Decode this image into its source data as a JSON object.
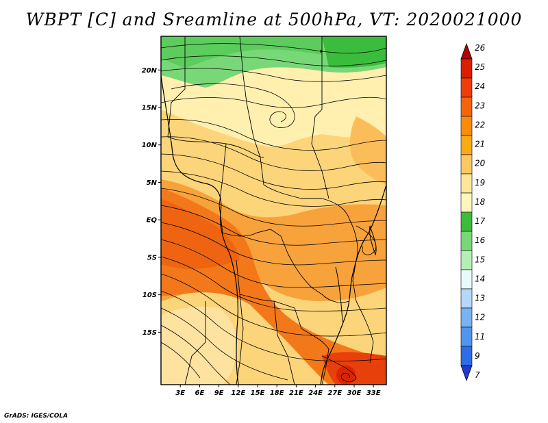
{
  "title": "WBPT [C] and Sreamline at 500hPa, VT: 2020021000",
  "credit": "GrADS: IGES/COLA",
  "map": {
    "lat_range": [
      -22,
      24.5
    ],
    "lon_range": [
      0,
      35
    ],
    "lat_ticks": [
      {
        "value": 20,
        "label": "20N"
      },
      {
        "value": 15,
        "label": "15N"
      },
      {
        "value": 10,
        "label": "10N"
      },
      {
        "value": 5,
        "label": "5N"
      },
      {
        "value": 0,
        "label": "EQ"
      },
      {
        "value": -5,
        "label": "5S"
      },
      {
        "value": -10,
        "label": "10S"
      },
      {
        "value": -15,
        "label": "15S"
      }
    ],
    "lon_ticks": [
      {
        "value": 3,
        "label": "3E"
      },
      {
        "value": 6,
        "label": "6E"
      },
      {
        "value": 9,
        "label": "9E"
      },
      {
        "value": 12,
        "label": "12E"
      },
      {
        "value": 15,
        "label": "15E"
      },
      {
        "value": 18,
        "label": "18E"
      },
      {
        "value": 21,
        "label": "21E"
      },
      {
        "value": 24,
        "label": "24E"
      },
      {
        "value": 27,
        "label": "27E"
      },
      {
        "value": 30,
        "label": "30E"
      },
      {
        "value": 33,
        "label": "33E"
      }
    ]
  },
  "colorbar": {
    "labels": [
      "26",
      "25",
      "24",
      "23",
      "22",
      "21",
      "20",
      "19",
      "18",
      "17",
      "16",
      "15",
      "14",
      "13",
      "12",
      "11",
      "9",
      "7"
    ],
    "colors": [
      "#b40000",
      "#dc1e00",
      "#f03c0a",
      "#f5640a",
      "#fa8c0a",
      "#faaa14",
      "#fcc864",
      "#fde69a",
      "#fff6be",
      "#3cbc3c",
      "#78d878",
      "#b4f0b4",
      "#eafafa",
      "#b4d8fa",
      "#78b4f0",
      "#5096f0",
      "#2d6ee6",
      "#1e3cd2"
    ]
  }
}
